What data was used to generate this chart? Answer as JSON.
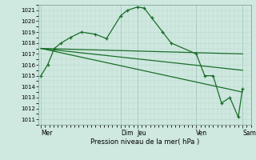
{
  "background_color": "#cfe8e0",
  "grid_color_minor": "#b8d8cc",
  "grid_color_major": "#88b8a8",
  "line_color": "#1a6e28",
  "ylim": [
    1010.5,
    1021.5
  ],
  "yticks": [
    1011,
    1012,
    1013,
    1014,
    1015,
    1016,
    1017,
    1018,
    1019,
    1020,
    1021
  ],
  "xlabel": "Pression niveau de la mer( hPa )",
  "day_labels": [
    "Mer",
    "Dim",
    "Jeu",
    "Ven",
    "Sam"
  ],
  "day_x": [
    0.0,
    9.5,
    11.5,
    18.5,
    24.0
  ],
  "xlim": [
    -0.3,
    25.0
  ],
  "series1_x": [
    0.0,
    0.8,
    1.6,
    2.4,
    3.5,
    4.8,
    6.5,
    7.8,
    9.5,
    10.3,
    11.5,
    12.3,
    13.2,
    14.5,
    15.5,
    18.5,
    19.5,
    20.5,
    21.5,
    22.5,
    23.5,
    24.0
  ],
  "series1_y": [
    1015.0,
    1016.0,
    1017.5,
    1018.0,
    1018.5,
    1019.0,
    1018.8,
    1018.4,
    1020.5,
    1021.0,
    1021.3,
    1021.2,
    1020.3,
    1019.0,
    1018.0,
    1017.0,
    1015.0,
    1015.0,
    1012.5,
    1013.0,
    1011.2,
    1013.8
  ],
  "series2_x": [
    0.0,
    24.0
  ],
  "series2_y": [
    1017.5,
    1017.0
  ],
  "series3_x": [
    0.0,
    24.0
  ],
  "series3_y": [
    1017.5,
    1015.5
  ],
  "series4_x": [
    0.0,
    24.0
  ],
  "series4_y": [
    1017.5,
    1013.5
  ],
  "vline_x": [
    0.0,
    9.5,
    11.5,
    18.5,
    24.0
  ]
}
